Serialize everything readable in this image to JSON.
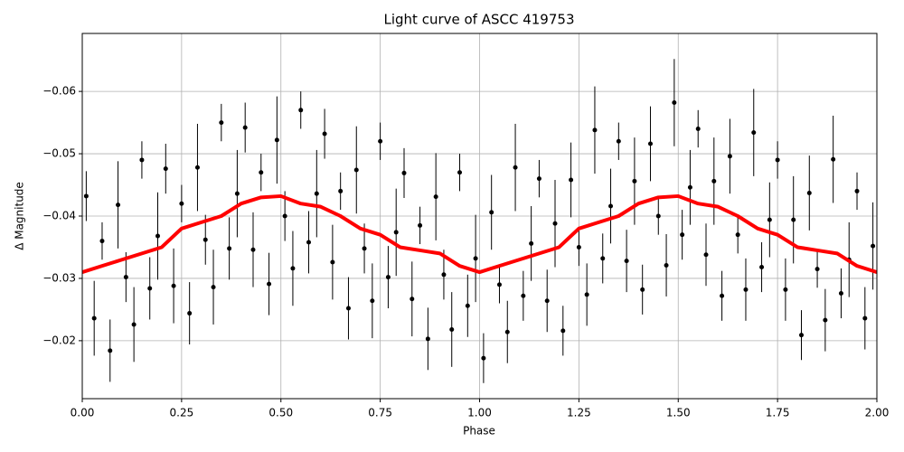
{
  "chart_data": {
    "type": "errorbar",
    "title": "Light curve of ASCC 419753",
    "xlabel": "Phase",
    "ylabel": "Δ Magnitude",
    "xlim": [
      0,
      2
    ],
    "ylim": [
      -0.0693,
      -0.0107
    ],
    "y_inverted": true,
    "grid": true,
    "xticks": [
      {
        "value": 0,
        "label": "0.00"
      },
      {
        "value": 0.25,
        "label": "0.25"
      },
      {
        "value": 0.5,
        "label": "0.50"
      },
      {
        "value": 0.75,
        "label": "0.75"
      },
      {
        "value": 1,
        "label": "1.00"
      },
      {
        "value": 1.25,
        "label": "1.25"
      },
      {
        "value": 1.5,
        "label": "1.50"
      },
      {
        "value": 1.75,
        "label": "1.75"
      },
      {
        "value": 2,
        "label": "2.00"
      }
    ],
    "yticks": [
      {
        "value": -0.06,
        "label": "−0.06"
      },
      {
        "value": -0.05,
        "label": "−0.05"
      },
      {
        "value": -0.04,
        "label": "−0.04"
      },
      {
        "value": -0.03,
        "label": "−0.03"
      },
      {
        "value": -0.02,
        "label": "−0.02"
      }
    ],
    "series": [
      {
        "type": "errorbar",
        "color": "#000000",
        "x": [
          0.01,
          0.03,
          0.05,
          0.07,
          0.09,
          0.11,
          0.13,
          0.15,
          0.17,
          0.19,
          0.21,
          0.23,
          0.25,
          0.27,
          0.29,
          0.31,
          0.33,
          0.35,
          0.37,
          0.39,
          0.41,
          0.43,
          0.45,
          0.47,
          0.49,
          0.51,
          0.53,
          0.55,
          0.57,
          0.59,
          0.61,
          0.63,
          0.65,
          0.67,
          0.69,
          0.71,
          0.73,
          0.75,
          0.77,
          0.79,
          0.81,
          0.83,
          0.85,
          0.87,
          0.89,
          0.91,
          0.93,
          0.95,
          0.97,
          0.99,
          1.01,
          1.03,
          1.05,
          1.07,
          1.09,
          1.11,
          1.13,
          1.15,
          1.17,
          1.19,
          1.21,
          1.23,
          1.25,
          1.27,
          1.29,
          1.31,
          1.33,
          1.35,
          1.37,
          1.39,
          1.41,
          1.43,
          1.45,
          1.47,
          1.49,
          1.51,
          1.53,
          1.55,
          1.57,
          1.59,
          1.61,
          1.63,
          1.65,
          1.67,
          1.69,
          1.71,
          1.73,
          1.75,
          1.77,
          1.79,
          1.81,
          1.83,
          1.85,
          1.87,
          1.89,
          1.91,
          1.93,
          1.95,
          1.97,
          1.99
        ],
        "values": [
          -0.0432,
          -0.0236,
          -0.036,
          -0.0184,
          -0.0418,
          -0.0302,
          -0.0226,
          -0.049,
          -0.0284,
          -0.0368,
          -0.0476,
          -0.0288,
          -0.042,
          -0.0244,
          -0.0478,
          -0.0362,
          -0.0286,
          -0.055,
          -0.0348,
          -0.0436,
          -0.0542,
          -0.0346,
          -0.047,
          -0.0291,
          -0.0522,
          -0.04,
          -0.0316,
          -0.057,
          -0.0358,
          -0.0436,
          -0.0532,
          -0.0326,
          -0.044,
          -0.0252,
          -0.0474,
          -0.0348,
          -0.0264,
          -0.052,
          -0.0302,
          -0.0374,
          -0.0469,
          -0.0267,
          -0.0385,
          -0.0203,
          -0.0431,
          -0.0306,
          -0.0218,
          -0.047,
          -0.0256,
          -0.0332,
          -0.0172,
          -0.0406,
          -0.029,
          -0.0214,
          -0.0478,
          -0.0272,
          -0.0356,
          -0.046,
          -0.0264,
          -0.0388,
          -0.0216,
          -0.0458,
          -0.035,
          -0.0274,
          -0.0538,
          -0.0332,
          -0.0416,
          -0.052,
          -0.0328,
          -0.0456,
          -0.0282,
          -0.0516,
          -0.04,
          -0.0321,
          -0.0582,
          -0.037,
          -0.0446,
          -0.054,
          -0.0338,
          -0.0456,
          -0.0272,
          -0.0496,
          -0.037,
          -0.0282,
          -0.0534,
          -0.0318,
          -0.0394,
          -0.049,
          -0.0282,
          -0.0394,
          -0.0209,
          -0.0437,
          -0.0315,
          -0.0233,
          -0.0491,
          -0.0276,
          -0.033,
          -0.044,
          -0.0236,
          -0.0352
        ],
        "errors": [
          0.004,
          0.006,
          0.003,
          0.005,
          0.007,
          0.004,
          0.006,
          0.003,
          0.005,
          0.007,
          0.004,
          0.006,
          0.003,
          0.005,
          0.007,
          0.004,
          0.006,
          0.003,
          0.005,
          0.007,
          0.004,
          0.006,
          0.003,
          0.005,
          0.007,
          0.004,
          0.006,
          0.003,
          0.005,
          0.007,
          0.004,
          0.006,
          0.003,
          0.005,
          0.007,
          0.004,
          0.006,
          0.003,
          0.005,
          0.007,
          0.004,
          0.006,
          0.003,
          0.005,
          0.007,
          0.004,
          0.006,
          0.003,
          0.005,
          0.007,
          0.004,
          0.006,
          0.003,
          0.005,
          0.007,
          0.004,
          0.006,
          0.003,
          0.005,
          0.007,
          0.004,
          0.006,
          0.003,
          0.005,
          0.007,
          0.004,
          0.006,
          0.003,
          0.005,
          0.007,
          0.004,
          0.006,
          0.003,
          0.005,
          0.007,
          0.004,
          0.006,
          0.003,
          0.005,
          0.007,
          0.004,
          0.006,
          0.003,
          0.005,
          0.007,
          0.004,
          0.006,
          0.003,
          0.005,
          0.007,
          0.004,
          0.006,
          0.003,
          0.005,
          0.007,
          0.004,
          0.006,
          0.003,
          0.005,
          0.007
        ]
      },
      {
        "type": "line",
        "color": "#ff0000",
        "x": [
          0,
          0.05,
          0.1,
          0.15,
          0.2,
          0.25,
          0.3,
          0.35,
          0.4,
          0.45,
          0.5,
          0.55,
          0.6,
          0.65,
          0.7,
          0.75,
          0.8,
          0.85,
          0.9,
          0.95,
          1,
          1.05,
          1.1,
          1.15,
          1.2,
          1.25,
          1.3,
          1.35,
          1.4,
          1.45,
          1.5,
          1.55,
          1.6,
          1.65,
          1.7,
          1.75,
          1.8,
          1.85,
          1.9,
          1.95,
          2
        ],
        "values": [
          -0.031,
          -0.032,
          -0.033,
          -0.034,
          -0.035,
          -0.038,
          -0.039,
          -0.04,
          -0.042,
          -0.043,
          -0.0432,
          -0.042,
          -0.0415,
          -0.04,
          -0.038,
          -0.037,
          -0.035,
          -0.0345,
          -0.034,
          -0.032,
          -0.031,
          -0.032,
          -0.033,
          -0.034,
          -0.035,
          -0.038,
          -0.039,
          -0.04,
          -0.042,
          -0.043,
          -0.0432,
          -0.042,
          -0.0415,
          -0.04,
          -0.038,
          -0.037,
          -0.035,
          -0.0345,
          -0.034,
          -0.032,
          -0.031
        ]
      }
    ]
  }
}
